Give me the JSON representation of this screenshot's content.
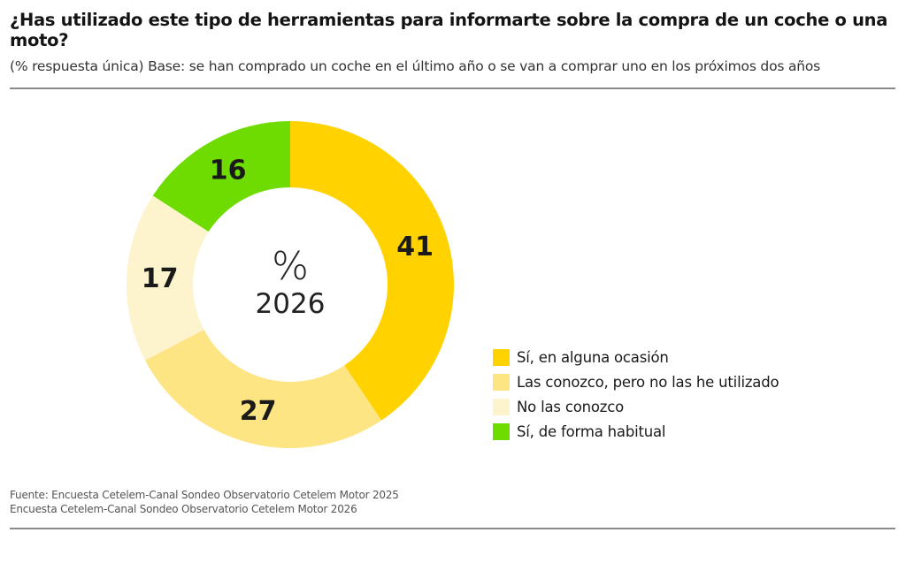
{
  "header": {
    "title": "¿Has utilizado este tipo de herramientas para informarte sobre la compra de un coche o una moto?",
    "subtitle": "(% respuesta única) Base: se han comprado un coche en el último año o se van a comprar uno en los próximos dos años"
  },
  "chart_data": {
    "type": "pie",
    "variant": "donut",
    "title": "¿Has utilizado este tipo de herramientas para informarte sobre la compra de un coche o una moto?",
    "subtitle": "(% respuesta única) Base: se han comprado un coche en el último año o se van a comprar uno en los próximos dos años",
    "center_label": {
      "symbol": "%",
      "year": "2026"
    },
    "unit": "%",
    "start_angle": "12 o'clock",
    "direction": "clockwise",
    "legend_position": "right",
    "categories": [
      "Sí, en alguna ocasión",
      "Las conozco, pero no las he utilizado",
      "No las conozco",
      "Sí, de forma habitual"
    ],
    "values": [
      41,
      27,
      17,
      16
    ],
    "colors": [
      "#FFD200",
      "#FCE582",
      "#FDF3CC",
      "#6EDC00"
    ]
  },
  "legend": {
    "items": [
      {
        "label": "Sí, en alguna ocasión",
        "color": "#FFD200"
      },
      {
        "label": "Las conozco, pero no las he utilizado",
        "color": "#FCE582"
      },
      {
        "label": "No las conozco",
        "color": "#FDF3CC"
      },
      {
        "label": "Sí, de forma habitual",
        "color": "#6EDC00"
      }
    ]
  },
  "footer": {
    "source_line1": "Fuente: Encuesta Cetelem-Canal Sondeo Observatorio Cetelem Motor 2025",
    "source_line2": "Encuesta Cetelem-Canal Sondeo Observatorio Cetelem Motor 2026"
  }
}
